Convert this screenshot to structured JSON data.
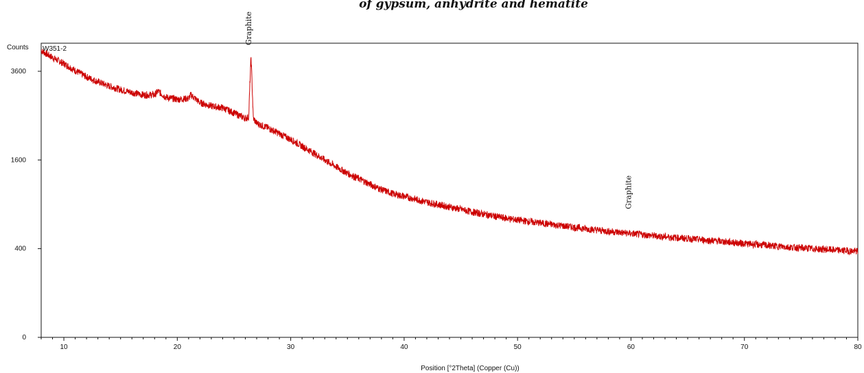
{
  "chart_data": {
    "type": "line",
    "title": "of gypsum, anhydrite and hematite",
    "ylabel": "Counts",
    "xlabel": "Position [°2Theta] (Copper (Cu))",
    "sample_label": "W351-2",
    "xlim": [
      8,
      80
    ],
    "y_scale": "sqrt",
    "ylim": [
      0,
      4400
    ],
    "x_ticks": [
      10,
      20,
      30,
      40,
      50,
      60,
      70,
      80
    ],
    "y_ticks": [
      0,
      400,
      1600,
      3600
    ],
    "grid": false,
    "color": "#cc0000",
    "series": [
      {
        "x": [
          8,
          9,
          10,
          11,
          12,
          13,
          14,
          15,
          16,
          17,
          18,
          18.3,
          19,
          20,
          21,
          21.2,
          22,
          23,
          24,
          25,
          26,
          26.3,
          26.5,
          26.7,
          27,
          28,
          29,
          30,
          31,
          32,
          33,
          34,
          35,
          36,
          37,
          38,
          39,
          40,
          42,
          44,
          46,
          48,
          50,
          52,
          54,
          56,
          58,
          60,
          62,
          64,
          66,
          68,
          70,
          72,
          74,
          76,
          78,
          80
        ],
        "y": [
          4180,
          3980,
          3810,
          3620,
          3450,
          3320,
          3210,
          3120,
          3050,
          2990,
          2990,
          3080,
          2930,
          2880,
          2900,
          2990,
          2800,
          2720,
          2680,
          2560,
          2440,
          2470,
          4000,
          2440,
          2330,
          2230,
          2110,
          1990,
          1860,
          1730,
          1600,
          1480,
          1370,
          1280,
          1190,
          1110,
          1050,
          1010,
          930,
          865,
          800,
          745,
          700,
          665,
          632,
          600,
          572,
          548,
          525,
          505,
          487,
          468,
          448,
          430,
          414,
          400,
          388,
          376
        ]
      }
    ],
    "annotations": [
      {
        "text": "Graphite",
        "x": 26.5
      },
      {
        "text": "Graphite",
        "x": 60.0
      }
    ]
  }
}
